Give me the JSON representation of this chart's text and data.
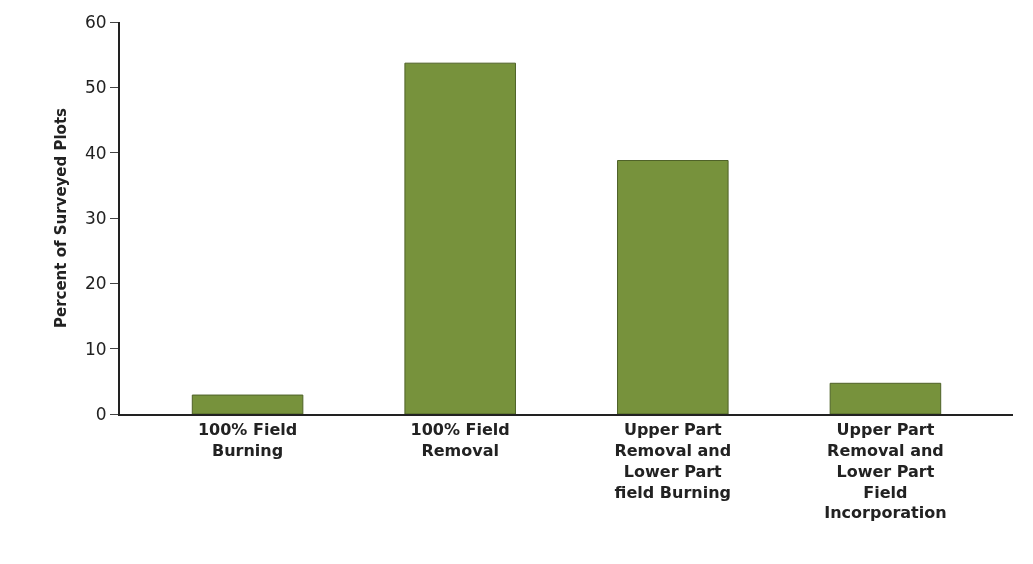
{
  "chart_data": {
    "type": "bar",
    "ylabel": "Percent of Surveyed Plots",
    "categories": [
      "100% Field Burning",
      "100% Field Removal",
      "Upper Part Removal and Lower Part field Burning",
      "Upper Part Removal and Lower Part Field Incorporation"
    ],
    "values": [
      2.9,
      53.7,
      38.8,
      4.7
    ],
    "color": "#77923c",
    "ylim": [
      0,
      60
    ],
    "yticks": [
      0,
      10,
      20,
      30,
      40,
      50,
      60
    ]
  }
}
